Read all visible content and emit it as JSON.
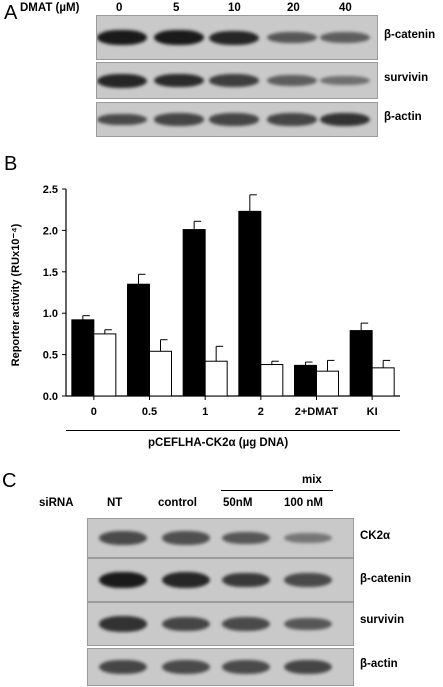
{
  "panel_a": {
    "letter": "A",
    "dose_label": "DMAT (µM)",
    "doses": [
      "0",
      "5",
      "10",
      "20",
      "40"
    ],
    "rows": [
      {
        "label": "β-catenin",
        "intensity": [
          1.0,
          1.0,
          0.9,
          0.5,
          0.45
        ]
      },
      {
        "label": "survivin",
        "intensity": [
          0.9,
          0.85,
          0.7,
          0.45,
          0.3
        ]
      },
      {
        "label": "β-actin",
        "intensity": [
          0.6,
          0.65,
          0.65,
          0.65,
          0.8
        ]
      }
    ]
  },
  "panel_b": {
    "letter": "B",
    "xlabel": "pCEFLHA-CK2α (µg DNA)"
  },
  "chart_data": {
    "type": "bar",
    "categories": [
      "0",
      "0.5",
      "1",
      "2",
      "2+DMAT",
      "KI"
    ],
    "ylabel": "Reporter activity (RUx10⁻⁴)",
    "ylim": [
      0,
      2.5
    ],
    "yticks": [
      "0.0",
      "0.5",
      "1.0",
      "1.5",
      "2.0",
      "2.5"
    ],
    "grid": false,
    "series": [
      {
        "color": "#000000",
        "values": [
          0.92,
          1.35,
          2.01,
          2.23,
          0.37,
          0.79
        ],
        "errors": [
          0.05,
          0.12,
          0.1,
          0.2,
          0.04,
          0.09
        ]
      },
      {
        "color": "#ffffff",
        "values": [
          0.75,
          0.54,
          0.42,
          0.38,
          0.3,
          0.34
        ],
        "errors": [
          0.05,
          0.14,
          0.18,
          0.04,
          0.13,
          0.09
        ]
      }
    ]
  },
  "panel_c": {
    "letter": "C",
    "sirna_label": "siRNA",
    "mix_label": "mix",
    "columns": [
      "NT",
      "control",
      "50nM",
      "100 nM"
    ],
    "rows": [
      {
        "label": "CK2α",
        "intensity": [
          0.6,
          0.55,
          0.5,
          0.25
        ]
      },
      {
        "label": "β-catenin",
        "intensity": [
          1.0,
          0.9,
          0.75,
          0.6
        ]
      },
      {
        "label": "survivin",
        "intensity": [
          0.8,
          0.65,
          0.6,
          0.5
        ]
      },
      {
        "label": "β-actin",
        "intensity": [
          0.65,
          0.6,
          0.6,
          0.65
        ]
      }
    ]
  }
}
